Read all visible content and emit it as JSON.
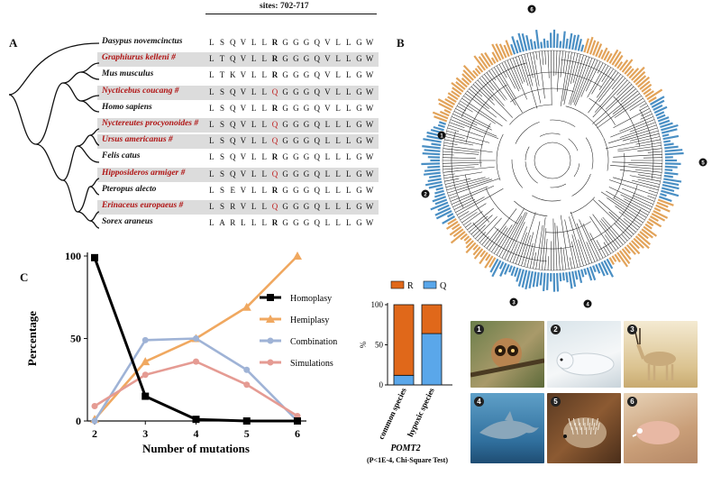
{
  "panel_a": {
    "letter": "A",
    "sites_label": "sites: 702-717",
    "rows": [
      {
        "species": "Dasypus novemcinctus",
        "marked": false,
        "shaded": false,
        "seq": [
          "L",
          "S",
          "Q",
          "V",
          "L",
          "L",
          "R",
          "G",
          "G",
          "G",
          "Q",
          "V",
          "L",
          "L",
          "G",
          "W"
        ]
      },
      {
        "species": "Graphiurus kelleni #",
        "marked": true,
        "shaded": true,
        "seq": [
          "L",
          "T",
          "Q",
          "V",
          "L",
          "L",
          "R",
          "G",
          "G",
          "G",
          "Q",
          "V",
          "L",
          "L",
          "G",
          "W"
        ]
      },
      {
        "species": "Mus musculus",
        "marked": false,
        "shaded": false,
        "seq": [
          "L",
          "T",
          "K",
          "V",
          "L",
          "L",
          "R",
          "G",
          "G",
          "G",
          "Q",
          "V",
          "L",
          "L",
          "G",
          "W"
        ]
      },
      {
        "species": "Nycticebus coucang #",
        "marked": true,
        "shaded": true,
        "seq": [
          "L",
          "S",
          "Q",
          "V",
          "L",
          "L",
          "Q",
          "G",
          "G",
          "G",
          "Q",
          "V",
          "L",
          "L",
          "G",
          "W"
        ]
      },
      {
        "species": "Homo sapiens",
        "marked": false,
        "shaded": false,
        "seq": [
          "L",
          "S",
          "Q",
          "V",
          "L",
          "L",
          "R",
          "G",
          "G",
          "G",
          "Q",
          "V",
          "L",
          "L",
          "G",
          "W"
        ]
      },
      {
        "species": "Nyctereutes procyonoides #",
        "marked": true,
        "shaded": true,
        "seq": [
          "L",
          "S",
          "Q",
          "V",
          "L",
          "L",
          "Q",
          "G",
          "G",
          "G",
          "Q",
          "L",
          "L",
          "L",
          "G",
          "W"
        ]
      },
      {
        "species": "Ursus americanus #",
        "marked": true,
        "shaded": true,
        "seq": [
          "L",
          "S",
          "Q",
          "V",
          "L",
          "L",
          "Q",
          "G",
          "G",
          "G",
          "Q",
          "L",
          "L",
          "L",
          "G",
          "W"
        ]
      },
      {
        "species": "Felis catus",
        "marked": false,
        "shaded": false,
        "seq": [
          "L",
          "S",
          "Q",
          "V",
          "L",
          "L",
          "R",
          "G",
          "G",
          "G",
          "Q",
          "L",
          "L",
          "L",
          "G",
          "W"
        ]
      },
      {
        "species": "Hipposideros armiger #",
        "marked": true,
        "shaded": true,
        "seq": [
          "L",
          "S",
          "Q",
          "V",
          "L",
          "L",
          "Q",
          "G",
          "G",
          "G",
          "Q",
          "L",
          "L",
          "L",
          "G",
          "W"
        ]
      },
      {
        "species": "Pteropus alecto",
        "marked": false,
        "shaded": false,
        "seq": [
          "L",
          "S",
          "E",
          "V",
          "L",
          "L",
          "R",
          "G",
          "G",
          "G",
          "Q",
          "L",
          "L",
          "L",
          "G",
          "W"
        ]
      },
      {
        "species": "Erinaceus europaeus #",
        "marked": true,
        "shaded": true,
        "seq": [
          "L",
          "S",
          "R",
          "V",
          "L",
          "L",
          "Q",
          "G",
          "G",
          "G",
          "Q",
          "L",
          "L",
          "L",
          "G",
          "W"
        ]
      },
      {
        "species": "Sorex araneus",
        "marked": false,
        "shaded": false,
        "seq": [
          "L",
          "A",
          "R",
          "L",
          "L",
          "L",
          "R",
          "G",
          "G",
          "G",
          "Q",
          "L",
          "L",
          "L",
          "G",
          "W"
        ]
      }
    ],
    "colors": {
      "red_species": "#b01313",
      "shade": "#dcdcdc",
      "q_highlight": "#c02020"
    }
  },
  "panel_b": {
    "letter": "B",
    "markers": [
      "1",
      "2",
      "3",
      "4",
      "5",
      "6"
    ],
    "colors": {
      "orange_leaf": "#e2a35a",
      "blue_leaf": "#4a8fc4",
      "branch": "#222222"
    }
  },
  "panel_c": {
    "letter": "C",
    "legend": [
      "Homoplasy",
      "Hemiplasy",
      "Combination",
      "Simulations"
    ]
  },
  "chart_data": [
    {
      "type": "line",
      "title": "",
      "xlabel": "Number of mutations",
      "ylabel": "Percentage",
      "x": [
        2,
        3,
        4,
        5,
        6
      ],
      "xlim": [
        2,
        6
      ],
      "ylim": [
        0,
        100
      ],
      "yticks": [
        0,
        50,
        100
      ],
      "legend_position": "right",
      "series": [
        {
          "name": "Homoplasy",
          "color": "#000000",
          "values": [
            99,
            15,
            1,
            0,
            0
          ]
        },
        {
          "name": "Hemiplasy",
          "color": "#f0a860",
          "values": [
            1,
            36,
            50,
            69,
            100
          ]
        },
        {
          "name": "Combination",
          "color": "#9fb3d6",
          "values": [
            0,
            49,
            50,
            31,
            0
          ]
        },
        {
          "name": "Simulations",
          "color": "#e59b93",
          "values": [
            9,
            28,
            36,
            22,
            3
          ]
        }
      ]
    },
    {
      "type": "bar",
      "stacked": true,
      "title": "POMT2",
      "subtitle": "(P<1E-4, Chi-Square Test)",
      "ylabel": "%",
      "ylim": [
        0,
        100
      ],
      "yticks": [
        0,
        50,
        100
      ],
      "categories": [
        "common species",
        "hypoxic species"
      ],
      "legend_position": "top",
      "series": [
        {
          "name": "Q",
          "color": "#5aa7ea",
          "values": [
            12,
            64
          ]
        },
        {
          "name": "R",
          "color": "#e0681a",
          "values": [
            88,
            36
          ]
        }
      ]
    }
  ],
  "photos": {
    "labels": [
      "1",
      "2",
      "3",
      "4",
      "5",
      "6"
    ],
    "subjects": [
      "slow-loris-icon",
      "polar-bear-icon",
      "antelope-icon",
      "dolphin-icon",
      "hedgehog-icon",
      "mole-rat-icon"
    ]
  }
}
